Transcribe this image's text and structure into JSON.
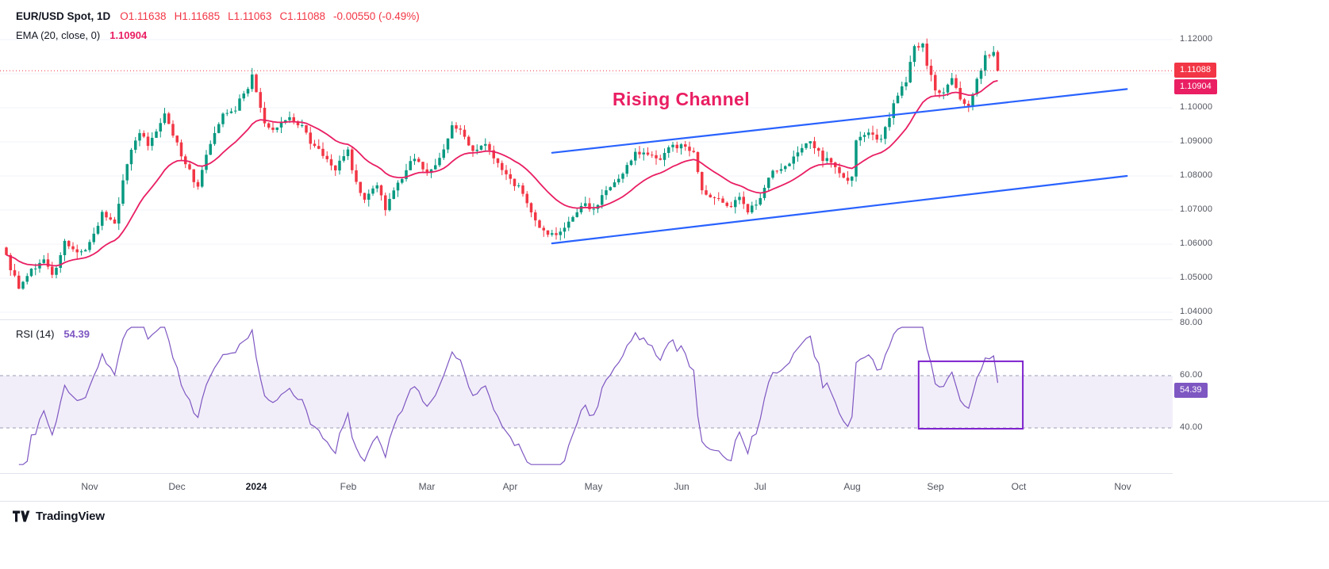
{
  "header": {
    "symbol": "EUR/USD Spot, 1D",
    "ohlc_tokens": [
      "O1.11638",
      "H1.11685",
      "L1.11063",
      "C1.11088",
      "-0.00550 (-0.49%)"
    ],
    "ema_label": "EMA (20, close, 0)",
    "ema_value": "1.10904"
  },
  "rsi_legend": {
    "label": "RSI (14)",
    "value": "54.39"
  },
  "footer": {
    "brand": "TradingView"
  },
  "colors": {
    "up": "#089981",
    "down": "#f23645",
    "ema": "#e91e63",
    "channel": "#2962ff",
    "rsi": "#7e57c2",
    "box": "#7e22ce",
    "annotation": "#e91e63",
    "grid": "#f1f3f8",
    "band_fill": "rgba(126,87,194,0.10)",
    "band_line": "#9b9db3"
  },
  "chart_data": {
    "type": "candlestick",
    "title": "EUR/USD Spot, 1D with EMA(20) overlay, rising channel drawing and RSI(14) sub-pane",
    "legend_position": "top-left",
    "grid": "faint-horizontal",
    "price_pane": {
      "y_axis_labels": [
        {
          "text": "1.12000",
          "price": 1.12
        },
        {
          "text": "1.10000",
          "price": 1.1
        },
        {
          "text": "1.09000",
          "price": 1.09
        },
        {
          "text": "1.08000",
          "price": 1.08
        },
        {
          "text": "1.07000",
          "price": 1.07
        },
        {
          "text": "1.06000",
          "price": 1.06
        },
        {
          "text": "1.05000",
          "price": 1.05
        },
        {
          "text": "1.04000",
          "price": 1.04
        }
      ],
      "grid_prices": [
        1.12,
        1.11,
        1.1,
        1.09,
        1.08,
        1.07,
        1.06,
        1.05,
        1.04
      ],
      "ylim": [
        1.038,
        1.1285
      ],
      "num_candles": 239,
      "note": "close-path anchors [trading_day_index, price] estimated from the chart; day 0 = early Oct 2023, day 238 = ~Sep 20 2024",
      "anchors": [
        [
          0,
          1.056
        ],
        [
          3,
          1.047
        ],
        [
          6,
          1.052
        ],
        [
          9,
          1.056
        ],
        [
          11,
          1.0505
        ],
        [
          14,
          1.0605
        ],
        [
          17,
          1.057
        ],
        [
          20,
          1.06
        ],
        [
          23,
          1.069
        ],
        [
          26,
          1.066
        ],
        [
          28,
          1.079
        ],
        [
          30,
          1.088
        ],
        [
          32,
          1.092
        ],
        [
          34,
          1.0895
        ],
        [
          37,
          1.096
        ],
        [
          38,
          1.0985
        ],
        [
          41,
          1.089
        ],
        [
          43,
          1.084
        ],
        [
          46,
          1.0765
        ],
        [
          49,
          1.09
        ],
        [
          52,
          1.0985
        ],
        [
          55,
          1.1
        ],
        [
          58,
          1.106
        ],
        [
          59,
          1.1105
        ],
        [
          60,
          1.104
        ],
        [
          62,
          1.095
        ],
        [
          65,
          1.0935
        ],
        [
          68,
          1.0975
        ],
        [
          71,
          1.0945
        ],
        [
          74,
          1.088
        ],
        [
          77,
          1.0855
        ],
        [
          79,
          1.082
        ],
        [
          82,
          1.087
        ],
        [
          84,
          1.0775
        ],
        [
          86,
          1.0725
        ],
        [
          89,
          1.077
        ],
        [
          91,
          1.0705
        ],
        [
          94,
          1.0775
        ],
        [
          96,
          1.082
        ],
        [
          98,
          1.0855
        ],
        [
          101,
          1.0805
        ],
        [
          104,
          1.085
        ],
        [
          107,
          1.0945
        ],
        [
          109,
          1.093
        ],
        [
          112,
          1.0875
        ],
        [
          115,
          1.0895
        ],
        [
          118,
          1.0835
        ],
        [
          121,
          1.079
        ],
        [
          124,
          1.0755
        ],
        [
          127,
          1.0665
        ],
        [
          131,
          1.0625
        ],
        [
          134,
          1.0655
        ],
        [
          137,
          1.0695
        ],
        [
          139,
          1.0715
        ],
        [
          141,
          1.07
        ],
        [
          144,
          1.0755
        ],
        [
          147,
          1.0785
        ],
        [
          151,
          1.087
        ],
        [
          154,
          1.086
        ],
        [
          157,
          1.085
        ],
        [
          159,
          1.0885
        ],
        [
          162,
          1.089
        ],
        [
          165,
          1.0865
        ],
        [
          167,
          1.0755
        ],
        [
          170,
          1.074
        ],
        [
          173,
          1.0705
        ],
        [
          176,
          1.0735
        ],
        [
          178,
          1.069
        ],
        [
          181,
          1.074
        ],
        [
          184,
          1.081
        ],
        [
          187,
          1.083
        ],
        [
          190,
          1.087
        ],
        [
          193,
          1.09
        ],
        [
          196,
          1.085
        ],
        [
          198,
          1.084
        ],
        [
          201,
          1.079
        ],
        [
          203,
          1.0795
        ],
        [
          204,
          1.091
        ],
        [
          207,
          1.092
        ],
        [
          210,
          1.091
        ],
        [
          213,
          1.101
        ],
        [
          216,
          1.108
        ],
        [
          218,
          1.118
        ],
        [
          220,
          1.119
        ],
        [
          221,
          1.113
        ],
        [
          223,
          1.105
        ],
        [
          225,
          1.104
        ],
        [
          227,
          1.108
        ],
        [
          229,
          1.102
        ],
        [
          231,
          1.101
        ],
        [
          233,
          1.108
        ],
        [
          235,
          1.115
        ],
        [
          237,
          1.11638
        ],
        [
          238,
          1.11088
        ]
      ],
      "last_candle": {
        "open": 1.11638,
        "high": 1.11685,
        "low": 1.11063,
        "close": 1.11088
      },
      "ema_period": 20,
      "ema_last": 1.10904,
      "price_line": 1.11088,
      "tags": [
        {
          "name": "last-price-tag",
          "text": "1.11088",
          "price": 1.11088,
          "color_key": "down"
        },
        {
          "name": "ema-value-tag",
          "text": "1.10904",
          "price": 1.10904,
          "color_key": "ema"
        }
      ],
      "channel_lines": [
        {
          "d1": 131,
          "p1": 1.0868,
          "d2": 269,
          "p2": 1.1055
        },
        {
          "d1": 131,
          "p1": 1.0602,
          "d2": 269,
          "p2": 1.08
        }
      ],
      "annotation_text": "Rising Channel"
    },
    "rsi_pane": {
      "period": 14,
      "last_value": 54.39,
      "axis_labels": [
        80,
        60,
        40
      ],
      "upper_band": 60,
      "lower_band": 40,
      "ylim": [
        22,
        81
      ],
      "box": {
        "d1": 219,
        "d2": 244,
        "top": 65.5,
        "bottom": 39.7
      }
    },
    "time_axis": [
      {
        "label": "Nov",
        "day": 20
      },
      {
        "label": "Dec",
        "day": 41
      },
      {
        "label": "2024",
        "day": 60,
        "major": true
      },
      {
        "label": "Feb",
        "day": 82
      },
      {
        "label": "Mar",
        "day": 101
      },
      {
        "label": "Apr",
        "day": 121
      },
      {
        "label": "May",
        "day": 141
      },
      {
        "label": "Jun",
        "day": 162
      },
      {
        "label": "Jul",
        "day": 181
      },
      {
        "label": "Aug",
        "day": 203
      },
      {
        "label": "Sep",
        "day": 223
      },
      {
        "label": "Oct",
        "day": 243
      },
      {
        "label": "Nov",
        "day": 268
      }
    ]
  }
}
